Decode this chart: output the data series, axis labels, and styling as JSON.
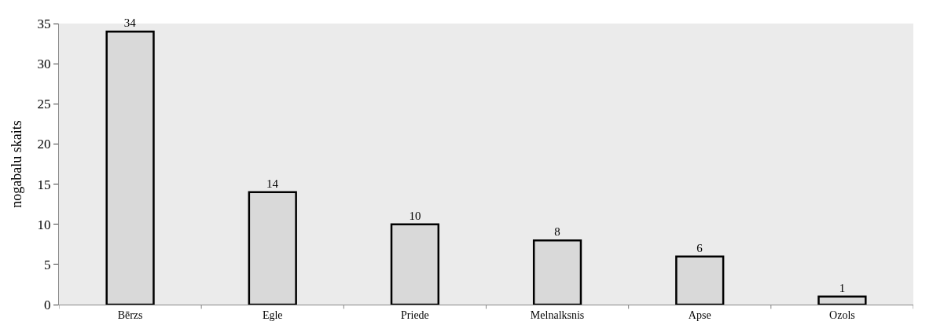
{
  "chart_data": {
    "type": "bar",
    "ylabel": "nogabalu skaits",
    "categories": [
      "Bērzs",
      "Egle",
      "Priede",
      "Melnalksnis",
      "Apse",
      "Ozols"
    ],
    "values": [
      34,
      14,
      10,
      8,
      6,
      1
    ],
    "color": "#d9d9d9",
    "ylim": [
      0,
      35
    ],
    "yticks": [
      0,
      5,
      10,
      15,
      20,
      25,
      30,
      35
    ],
    "grid": false,
    "data_labels": true
  }
}
